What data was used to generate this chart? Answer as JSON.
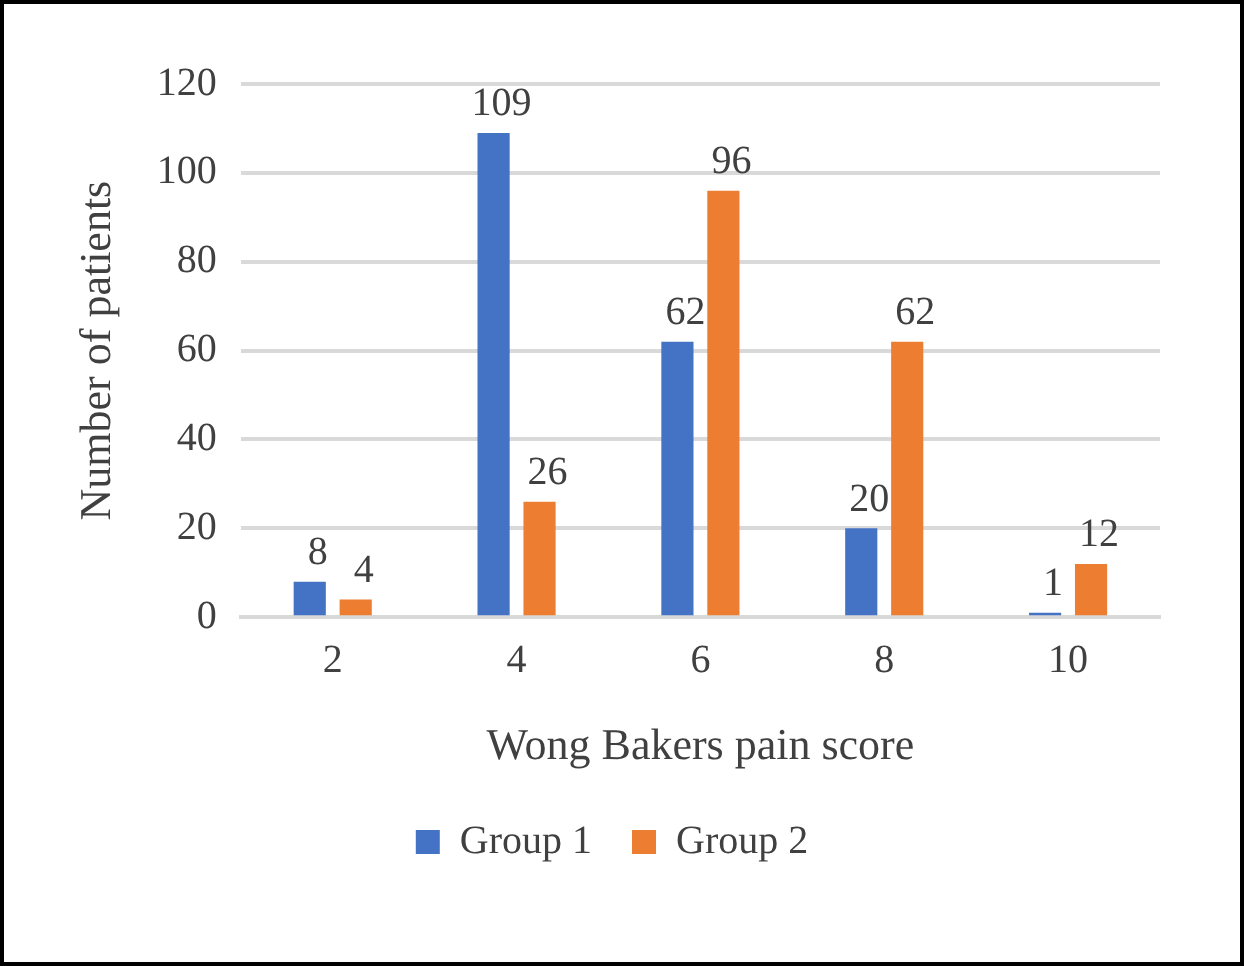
{
  "chart_data": {
    "type": "bar",
    "xlabel": "Wong Bakers pain score",
    "ylabel": "Number of patients",
    "categories": [
      "2",
      "4",
      "6",
      "8",
      "10"
    ],
    "series": [
      {
        "name": "Group 1",
        "color": "#4472c4",
        "values": [
          8,
          109,
          62,
          20,
          1
        ]
      },
      {
        "name": "Group 2",
        "color": "#ed7d31",
        "values": [
          4,
          26,
          96,
          62,
          12
        ]
      }
    ],
    "ylim": [
      0,
      120
    ],
    "yticks": [
      0,
      20,
      40,
      60,
      80,
      100,
      120
    ],
    "grid": "y",
    "legend": "bottom",
    "data_labels": true
  }
}
